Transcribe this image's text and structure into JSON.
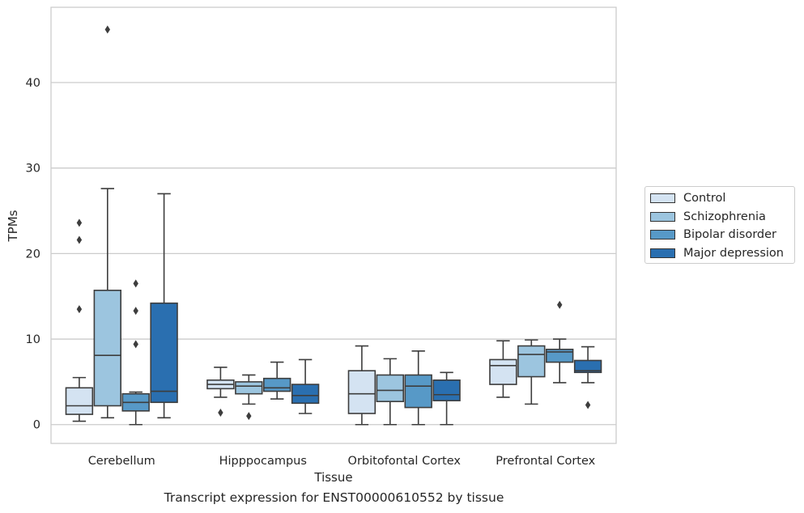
{
  "chart_data": {
    "type": "box",
    "title": "",
    "xlabel": "Tissue",
    "ylabel": "TPMs",
    "ylim": [
      -2.2,
      48.8
    ],
    "yticks": [
      0,
      10,
      20,
      30,
      40
    ],
    "grid": "horizontal",
    "legend_position": "right",
    "categories": [
      "Cerebellum",
      "Hipppocampus",
      "Orbitofontal Cortex",
      "Prefrontal Cortex"
    ],
    "series": [
      {
        "name": "Control",
        "color": "#d4e3f2",
        "boxes": [
          {
            "whislo": 0.4,
            "q1": 1.2,
            "med": 2.2,
            "q3": 4.3,
            "whishi": 5.5,
            "fliers": [
              13.5,
              21.6,
              23.6
            ]
          },
          {
            "whislo": 3.2,
            "q1": 4.2,
            "med": 4.7,
            "q3": 5.2,
            "whishi": 6.7,
            "fliers": [
              1.4
            ]
          },
          {
            "whislo": 0.0,
            "q1": 1.3,
            "med": 3.6,
            "q3": 6.3,
            "whishi": 9.2,
            "fliers": []
          },
          {
            "whislo": 3.2,
            "q1": 4.7,
            "med": 6.9,
            "q3": 7.6,
            "whishi": 9.8,
            "fliers": []
          }
        ]
      },
      {
        "name": "Schizophrenia",
        "color": "#9cc5df",
        "boxes": [
          {
            "whislo": 0.8,
            "q1": 2.2,
            "med": 8.1,
            "q3": 15.7,
            "whishi": 27.6,
            "fliers": [
              46.2
            ]
          },
          {
            "whislo": 2.4,
            "q1": 3.6,
            "med": 4.5,
            "q3": 5.0,
            "whishi": 5.8,
            "fliers": [
              1.0
            ]
          },
          {
            "whislo": 0.0,
            "q1": 2.7,
            "med": 4.0,
            "q3": 5.8,
            "whishi": 7.7,
            "fliers": []
          },
          {
            "whislo": 2.4,
            "q1": 5.6,
            "med": 8.2,
            "q3": 9.2,
            "whishi": 9.9,
            "fliers": []
          }
        ]
      },
      {
        "name": "Bipolar disorder",
        "color": "#5799c7",
        "boxes": [
          {
            "whislo": 0.0,
            "q1": 1.6,
            "med": 2.6,
            "q3": 3.6,
            "whishi": 3.8,
            "fliers": [
              9.4,
              13.3,
              16.5
            ]
          },
          {
            "whislo": 3.0,
            "q1": 3.9,
            "med": 4.3,
            "q3": 5.4,
            "whishi": 7.3,
            "fliers": []
          },
          {
            "whislo": 0.0,
            "q1": 2.0,
            "med": 4.5,
            "q3": 5.8,
            "whishi": 8.6,
            "fliers": []
          },
          {
            "whislo": 4.9,
            "q1": 7.3,
            "med": 8.5,
            "q3": 8.8,
            "whishi": 10.0,
            "fliers": [
              14.0
            ]
          }
        ]
      },
      {
        "name": "Major depression",
        "color": "#2a6fb0",
        "boxes": [
          {
            "whislo": 0.8,
            "q1": 2.6,
            "med": 3.9,
            "q3": 14.2,
            "whishi": 27.0,
            "fliers": []
          },
          {
            "whislo": 1.3,
            "q1": 2.5,
            "med": 3.4,
            "q3": 4.7,
            "whishi": 7.6,
            "fliers": []
          },
          {
            "whislo": 0.0,
            "q1": 2.8,
            "med": 3.5,
            "q3": 5.2,
            "whishi": 6.1,
            "fliers": []
          },
          {
            "whislo": 4.9,
            "q1": 6.1,
            "med": 6.3,
            "q3": 7.5,
            "whishi": 9.1,
            "fliers": [
              2.3
            ]
          }
        ]
      }
    ]
  },
  "caption": "Transcript expression for ENST00000610552 by tissue"
}
